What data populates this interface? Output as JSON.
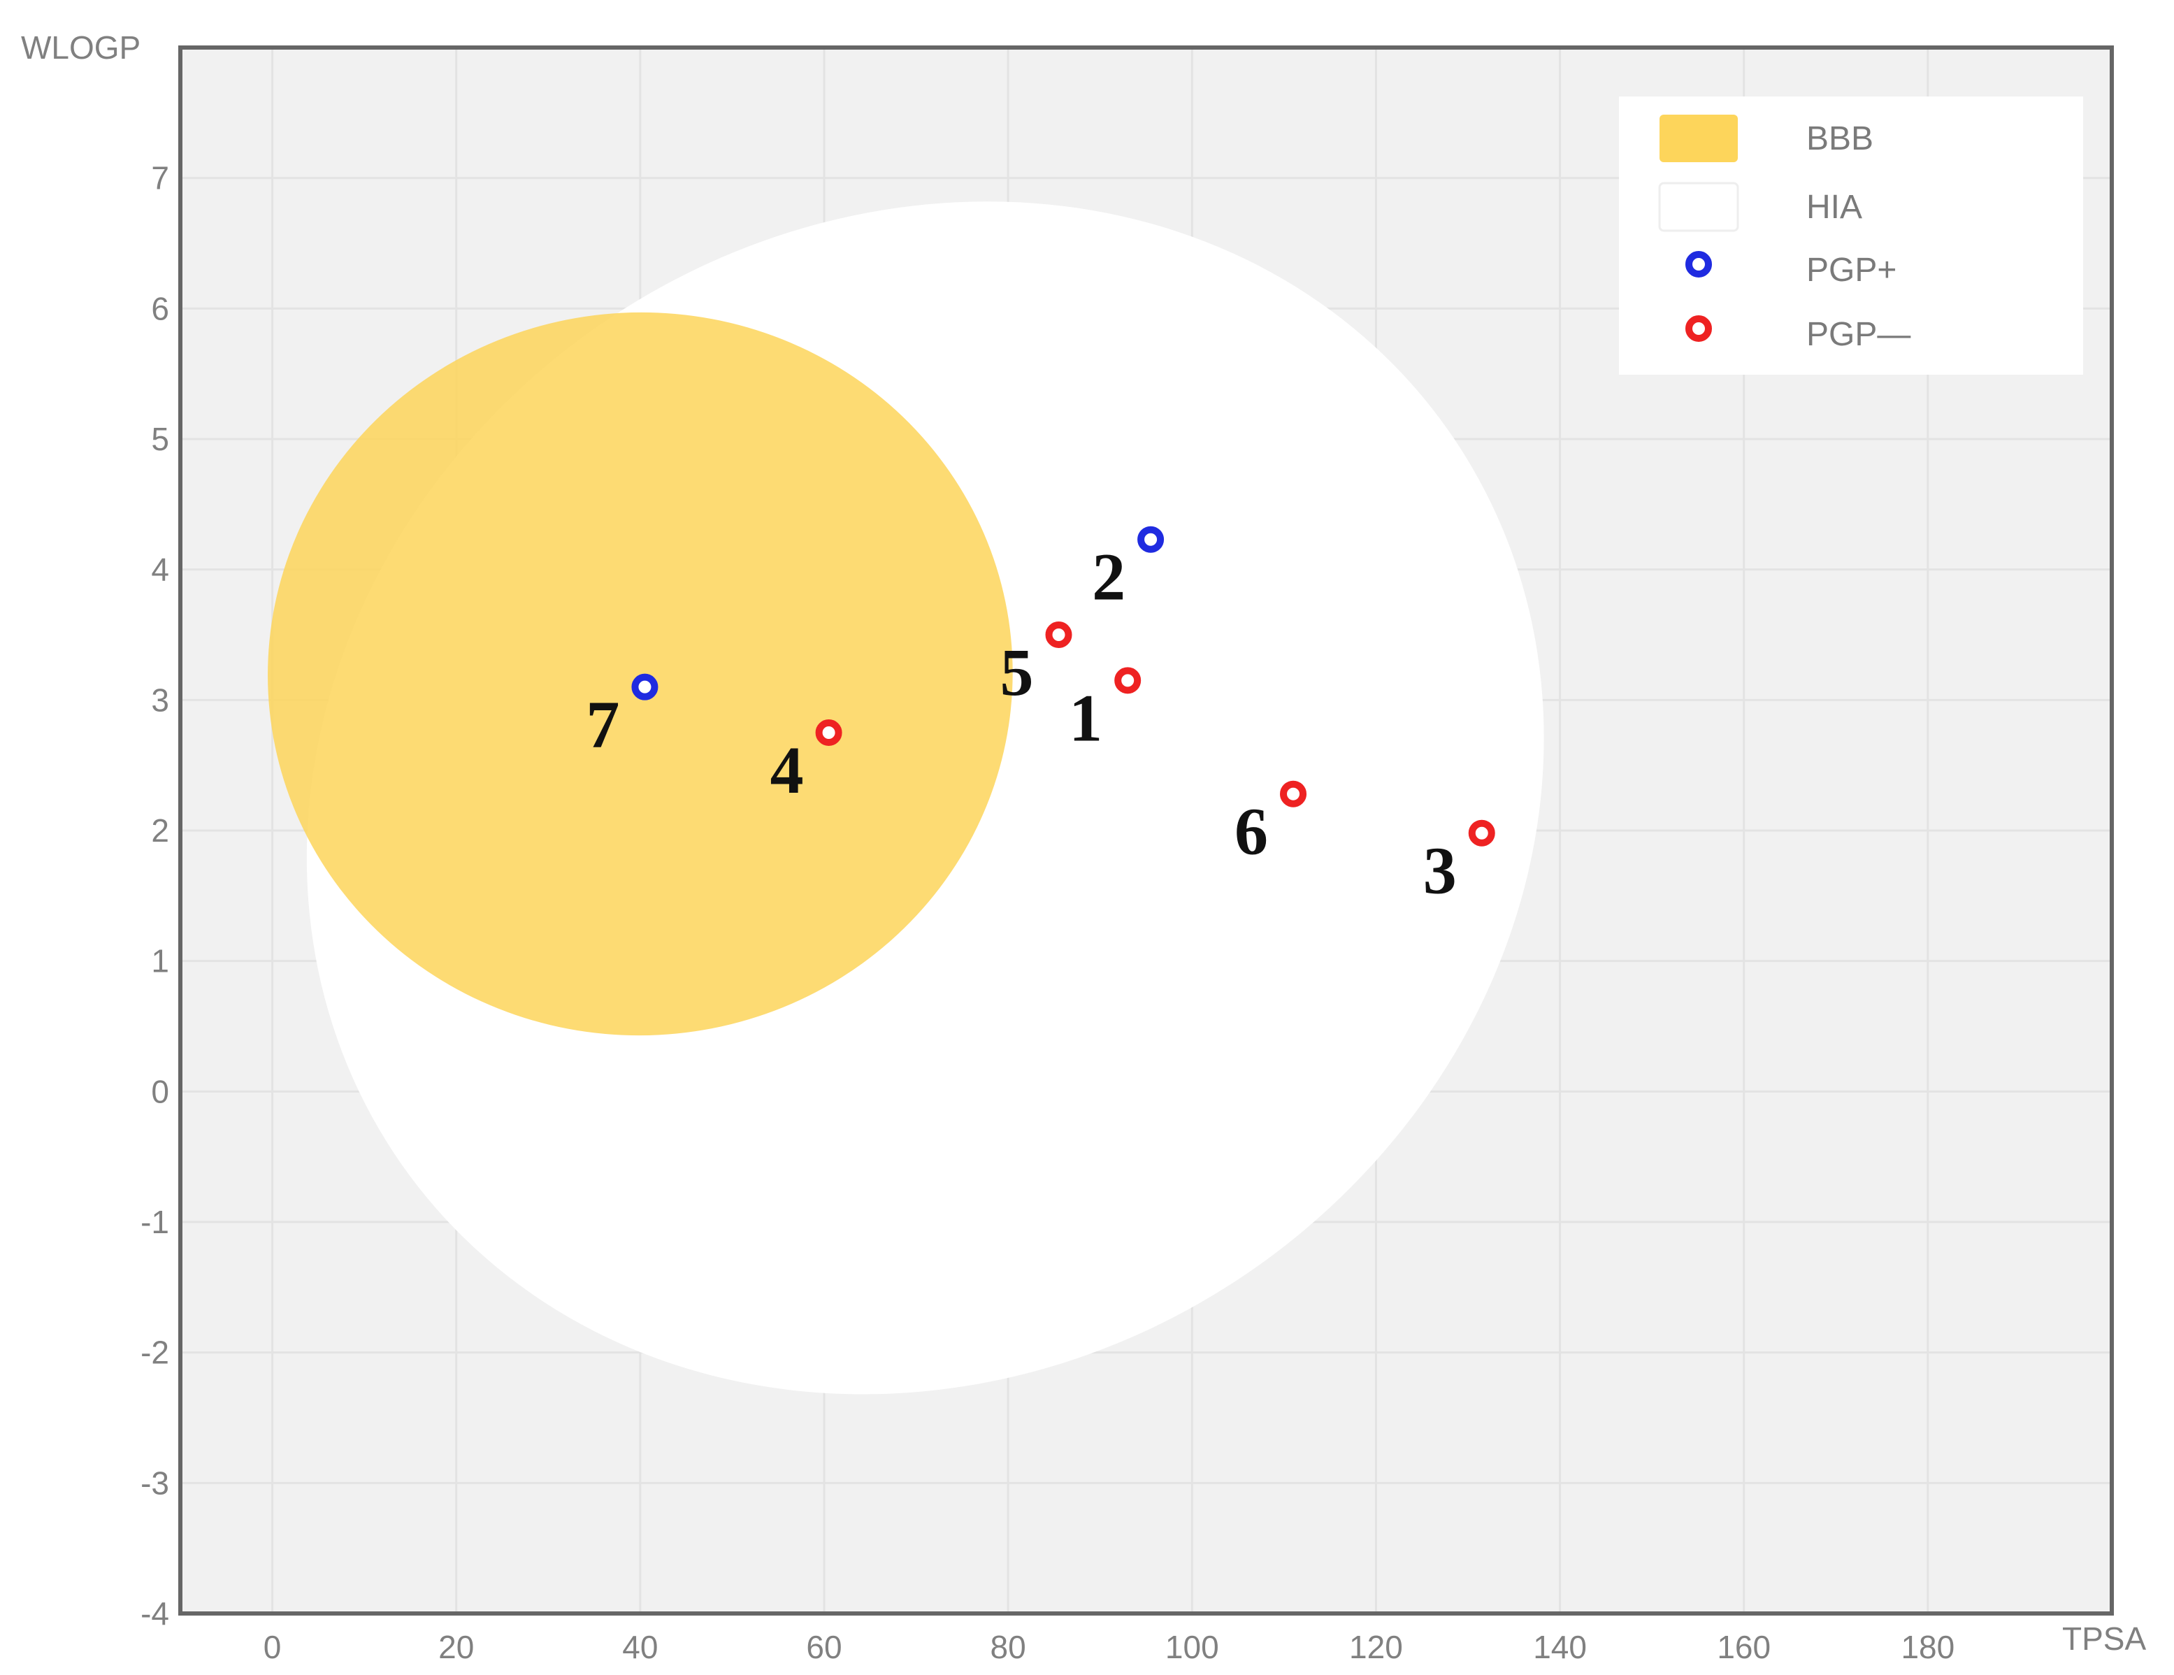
{
  "chart_data": {
    "type": "scatter",
    "title": "",
    "xlabel": "TPSA",
    "ylabel": "WLOGP",
    "xlim": [
      -10,
      200
    ],
    "ylim": [
      -4,
      8
    ],
    "xticks": [
      0,
      20,
      40,
      60,
      80,
      100,
      120,
      140,
      160,
      180
    ],
    "yticks": [
      -4,
      -3,
      -2,
      -1,
      0,
      1,
      2,
      3,
      4,
      5,
      6,
      7
    ],
    "grid": true,
    "legend_position": "top-right",
    "regions": [
      {
        "name": "HIA",
        "shape": "ellipse",
        "center": [
          71,
          2.25
        ],
        "radii": [
          69.5,
          4.4
        ],
        "rotation_deg": -35,
        "color": "#ffffff"
      },
      {
        "name": "BBB",
        "shape": "ellipse",
        "center": [
          40,
          3.2
        ],
        "radii": [
          40.5,
          2.77
        ],
        "rotation_deg": -3,
        "color": "#fdd55b"
      }
    ],
    "series": [
      {
        "name": "PGP+",
        "color": "#1f2be0",
        "points": [
          {
            "label": "2",
            "x": 95.5,
            "y": 4.23
          },
          {
            "label": "7",
            "x": 40.5,
            "y": 3.1
          }
        ]
      },
      {
        "name": "PGP—",
        "color": "#ee2222",
        "points": [
          {
            "label": "5",
            "x": 85.5,
            "y": 3.5
          },
          {
            "label": "1",
            "x": 93.0,
            "y": 3.15
          },
          {
            "label": "4",
            "x": 60.5,
            "y": 2.75
          },
          {
            "label": "6",
            "x": 111.0,
            "y": 2.28
          },
          {
            "label": "3",
            "x": 131.5,
            "y": 1.98
          }
        ]
      }
    ],
    "legend": [
      {
        "name": "BBB",
        "kind": "swatch",
        "color": "#fdd55b"
      },
      {
        "name": "HIA",
        "kind": "swatch",
        "color": "#ffffff"
      },
      {
        "name": "PGP+",
        "kind": "marker",
        "color": "#1f2be0"
      },
      {
        "name": "PGP—",
        "kind": "marker",
        "color": "#ee2222"
      }
    ]
  }
}
